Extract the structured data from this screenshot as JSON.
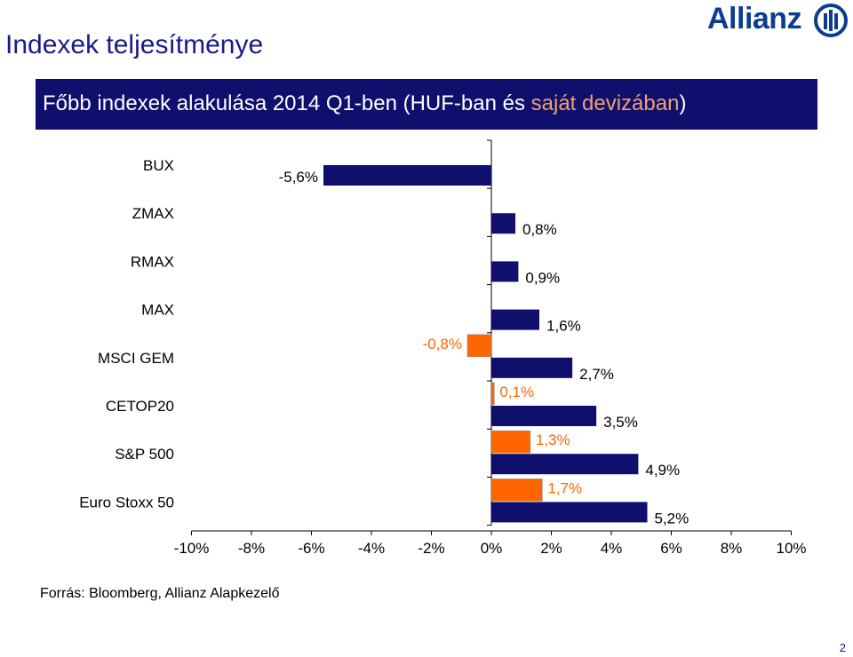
{
  "header": {
    "title": "Indexek teljesítménye",
    "logo_text": "Allianz"
  },
  "banner": {
    "text_main": "Főbb indexek alakulása 2014 Q1-ben (HUF-ban és ",
    "text_highlight": "saját devizában",
    "text_end": ")"
  },
  "colors": {
    "huf": "#0f0f6e",
    "local": "#ff6600",
    "accent": "#1a1a8c"
  },
  "chart_data": {
    "type": "bar",
    "orientation": "horizontal",
    "categories": [
      "BUX",
      "ZMAX",
      "RMAX",
      "MAX",
      "MSCI GEM",
      "CETOP20",
      "S&P 500",
      "Euro Stoxx 50"
    ],
    "series": [
      {
        "key": "huf",
        "values": [
          -5.6,
          0.8,
          0.9,
          1.6,
          2.7,
          3.5,
          4.9,
          5.2
        ],
        "labels": [
          "-5,6%",
          "0,8%",
          "0,9%",
          "1,6%",
          "2,7%",
          "3,5%",
          "4,9%",
          "5,2%"
        ]
      },
      {
        "key": "local",
        "values": [
          null,
          null,
          null,
          null,
          -0.8,
          0.1,
          1.3,
          1.7
        ],
        "labels": [
          null,
          null,
          null,
          null,
          "-0,8%",
          "0,1%",
          "1,3%",
          "1,7%"
        ]
      }
    ],
    "xlim": [
      -10,
      10
    ],
    "xticks": [
      -10,
      -8,
      -6,
      -4,
      -2,
      0,
      2,
      4,
      6,
      8,
      10
    ],
    "xtick_labels": [
      "-10%",
      "-8%",
      "-6%",
      "-4%",
      "-2%",
      "0%",
      "2%",
      "4%",
      "6%",
      "8%",
      "10%"
    ],
    "grid": false,
    "legend": "none"
  },
  "footer": {
    "source": "Forrás: Bloomberg, Allianz Alapkezelő",
    "page": "2"
  }
}
